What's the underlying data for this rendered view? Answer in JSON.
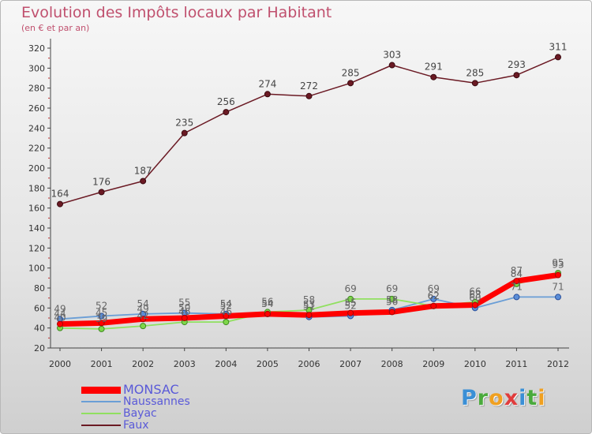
{
  "title": "Evolution des Impôts locaux par Habitant",
  "subtitle": "(en € et par an)",
  "logo": {
    "text": "Proxiti",
    "letters": [
      {
        "ch": "P",
        "color": "#3a8fd6"
      },
      {
        "ch": "r",
        "color": "#4aaa3c"
      },
      {
        "ch": "o",
        "color": "#f0a020"
      },
      {
        "ch": "x",
        "color": "#e03c3c"
      },
      {
        "ch": "i",
        "color": "#3a8fd6"
      },
      {
        "ch": "t",
        "color": "#4aaa3c"
      },
      {
        "ch": "i",
        "color": "#f0a020"
      }
    ]
  },
  "chart_data": {
    "type": "line",
    "title": "Evolution des Impôts locaux par Habitant",
    "subtitle": "(en € et par an)",
    "xlabel": "",
    "ylabel": "",
    "x": [
      "2000",
      "2001",
      "2002",
      "2003",
      "2004",
      "2005",
      "2006",
      "2007",
      "2008",
      "2009",
      "2010",
      "2011",
      "2012"
    ],
    "ylim": [
      20,
      320
    ],
    "yticks": [
      20,
      40,
      60,
      80,
      100,
      120,
      140,
      160,
      180,
      200,
      220,
      240,
      260,
      280,
      300,
      320
    ],
    "grid": false,
    "legend_position": "bottom-left",
    "series": [
      {
        "name": "MONSAC",
        "color": "#ff0000",
        "values": [
          44,
          45,
          49,
          50,
          52,
          54,
          53,
          55,
          56,
          62,
          63,
          87,
          93
        ],
        "labels_shown": [
          true,
          true,
          true,
          true,
          true,
          true,
          true,
          true,
          true,
          true,
          true,
          true,
          true
        ]
      },
      {
        "name": "Naussannes",
        "color": "#6a9ed6",
        "values": [
          49,
          52,
          54,
          55,
          54,
          54,
          51,
          52,
          58,
          69,
          60,
          71,
          71
        ],
        "labels_shown": [
          true,
          true,
          true,
          true,
          true,
          true,
          true,
          true,
          true,
          true,
          true,
          true,
          true
        ]
      },
      {
        "name": "Bayac",
        "color": "#90e060",
        "values": [
          40,
          39,
          42,
          46,
          46,
          56,
          58,
          69,
          69,
          62,
          66,
          84,
          95
        ],
        "labels_shown": [
          true,
          true,
          true,
          true,
          true,
          true,
          true,
          true,
          true,
          true,
          true,
          true,
          true
        ]
      },
      {
        "name": "Faux",
        "color": "#6b1a24",
        "values": [
          164,
          176,
          187,
          235,
          256,
          274,
          272,
          285,
          303,
          291,
          285,
          293,
          311
        ],
        "labels_shown": [
          true,
          true,
          true,
          true,
          true,
          true,
          true,
          true,
          true,
          true,
          true,
          true,
          true
        ]
      }
    ]
  }
}
